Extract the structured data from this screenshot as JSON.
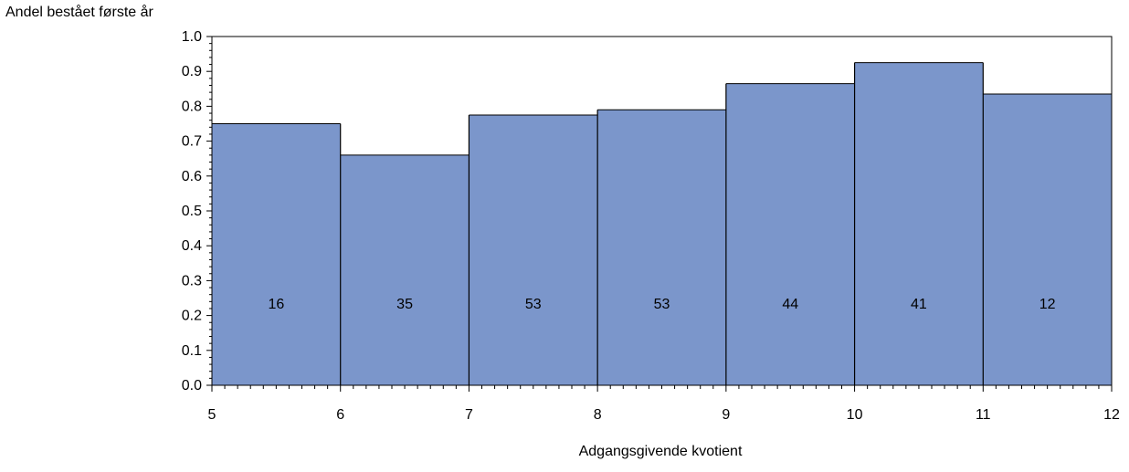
{
  "chart_data": {
    "type": "bar",
    "title": "",
    "ylabel": "Andel bestået første år",
    "xlabel": "Adgangsgivende kvotient",
    "xlim": [
      5,
      12
    ],
    "ylim": [
      0,
      1.0
    ],
    "x_ticks": [
      "5",
      "6",
      "7",
      "8",
      "9",
      "10",
      "11",
      "12"
    ],
    "y_ticks": [
      "0.0",
      "0.1",
      "0.2",
      "0.3",
      "0.4",
      "0.5",
      "0.6",
      "0.7",
      "0.8",
      "0.9",
      "1.0"
    ],
    "bins": [
      {
        "from": 5,
        "to": 6,
        "value": 0.75,
        "label": "16"
      },
      {
        "from": 6,
        "to": 7,
        "value": 0.66,
        "label": "35"
      },
      {
        "from": 7,
        "to": 8,
        "value": 0.775,
        "label": "53"
      },
      {
        "from": 8,
        "to": 9,
        "value": 0.79,
        "label": "53"
      },
      {
        "from": 9,
        "to": 10,
        "value": 0.865,
        "label": "44"
      },
      {
        "from": 10,
        "to": 11,
        "value": 0.925,
        "label": "41"
      },
      {
        "from": 11,
        "to": 12,
        "value": 0.835,
        "label": "12"
      }
    ],
    "label_y": 0.235,
    "bar_color": "#7b96cb",
    "grid": false,
    "legend": "none"
  }
}
